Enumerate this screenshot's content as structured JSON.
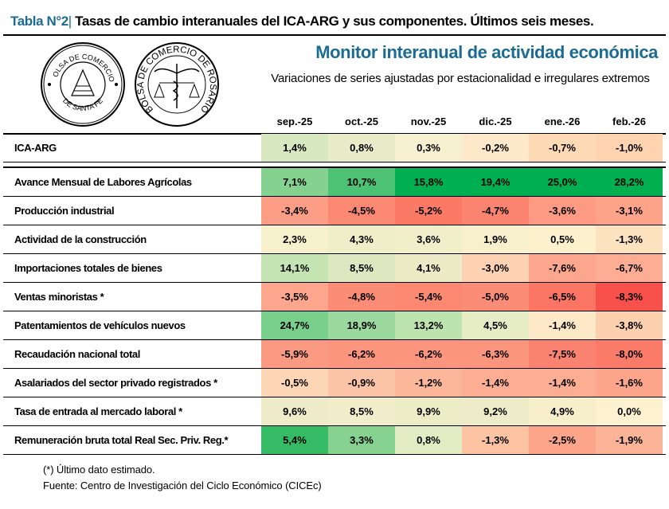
{
  "title": {
    "number": "Tabla N°2",
    "separator": "|",
    "text": "Tasas de cambio interanuales del ICA-ARG y sus componentes. Últimos seis meses."
  },
  "logos": {
    "santa_fe": {
      "top": "BOLSA DE COMERCIO",
      "bottom": "DE SANTA FE"
    },
    "rosario": {
      "text": "BOLSA DE COMERCIO DE ROSARIO"
    }
  },
  "monitor_title": "Monitor interanual de actividad económica",
  "subtitle": "Variaciones de series ajustadas por estacionalidad e irregulares extremos",
  "months": [
    "sep.-25",
    "oct.-25",
    "nov.-25",
    "dic.-25",
    "ene.-26",
    "feb.-26"
  ],
  "headline_row": {
    "label": "ICA-ARG",
    "values": [
      "1,4%",
      "0,8%",
      "0,3%",
      "-0,2%",
      "-0,7%",
      "-1,0%"
    ],
    "colors": [
      "#d8e8c0",
      "#e8ecc8",
      "#f7f0d0",
      "#feeacb",
      "#fdd9b5",
      "#fdd3b0"
    ]
  },
  "rows": [
    {
      "label": "Avance Mensual de Labores Agrícolas",
      "values": [
        "7,1%",
        "10,7%",
        "15,8%",
        "19,4%",
        "25,0%",
        "28,2%"
      ],
      "colors": [
        "#85d18f",
        "#4ec274",
        "#00b050",
        "#00b050",
        "#00b050",
        "#00b050"
      ]
    },
    {
      "label": "Producción industrial",
      "values": [
        "-3,4%",
        "-4,5%",
        "-5,2%",
        "-4,7%",
        "-3,6%",
        "-3,1%"
      ],
      "colors": [
        "#fc9d85",
        "#fb8872",
        "#fa7a66",
        "#fb8470",
        "#fc9a83",
        "#fca38a"
      ]
    },
    {
      "label": "Actividad de la construcción",
      "values": [
        "2,3%",
        "4,3%",
        "3,6%",
        "1,9%",
        "0,5%",
        "-1,3%"
      ],
      "colors": [
        "#f6f0cc",
        "#eeeec8",
        "#f1efca",
        "#f8f0cd",
        "#fdf0cd",
        "#fde2c0"
      ]
    },
    {
      "label": "Importaciones totales de bienes",
      "values": [
        "14,1%",
        "8,5%",
        "4,1%",
        "-3,0%",
        "-7,6%",
        "-6,7%"
      ],
      "colors": [
        "#c4e4b2",
        "#dde8c1",
        "#ecebc6",
        "#fdd2b2",
        "#fca68d",
        "#fcad93"
      ]
    },
    {
      "label": "Ventas minoristas *",
      "values": [
        "-3,5%",
        "-4,8%",
        "-5,4%",
        "-5,0%",
        "-6,5%",
        "-8,3%"
      ],
      "colors": [
        "#fca68d",
        "#fb8c75",
        "#fb8870",
        "#fb8c76",
        "#fa7563",
        "#f8504a"
      ]
    },
    {
      "label": "Patentamientos de vehículos nuevos",
      "values": [
        "24,7%",
        "18,9%",
        "13,2%",
        "4,5%",
        "-1,4%",
        "-3,8%"
      ],
      "colors": [
        "#79cf8c",
        "#9bd99e",
        "#bde3ae",
        "#e6ecc4",
        "#fde8c8",
        "#fdd1b0"
      ]
    },
    {
      "label": "Recaudación nacional total",
      "values": [
        "-5,9%",
        "-6,2%",
        "-6,2%",
        "-6,3%",
        "-7,5%",
        "-8,0%"
      ],
      "colors": [
        "#fa9a82",
        "#fb957e",
        "#fb957e",
        "#fb947d",
        "#fa8270",
        "#fa7b68"
      ]
    },
    {
      "label": "Asalariados del sector privado registrados *",
      "values": [
        "-0,5%",
        "-0,9%",
        "-1,2%",
        "-1,4%",
        "-1,4%",
        "-1,6%"
      ],
      "colors": [
        "#fdd6b6",
        "#fcc4a6",
        "#fcb79a",
        "#fcad92",
        "#fcad92",
        "#fca58b"
      ]
    },
    {
      "label": "Tasa de entrada al mercado laboral *",
      "values": [
        "9,6%",
        "8,5%",
        "9,9%",
        "9,2%",
        "4,9%",
        "0,0%"
      ],
      "colors": [
        "#eeecc8",
        "#f1edca",
        "#ececc6",
        "#eeecc8",
        "#f7efcc",
        "#fef1cf"
      ]
    },
    {
      "label": "Remuneración bruta total Real Sec. Priv. Reg.*",
      "values": [
        "5,4%",
        "3,3%",
        "0,8%",
        "-1,3%",
        "-2,5%",
        "-1,9%"
      ],
      "colors": [
        "#35ba66",
        "#86d291",
        "#e3ebc3",
        "#fdc4a4",
        "#fca58b",
        "#fcb498"
      ]
    }
  ],
  "footnotes": [
    "(*) Último dato estimado.",
    "Fuente: Centro de Investigación del Ciclo Económico (CICEc)"
  ]
}
